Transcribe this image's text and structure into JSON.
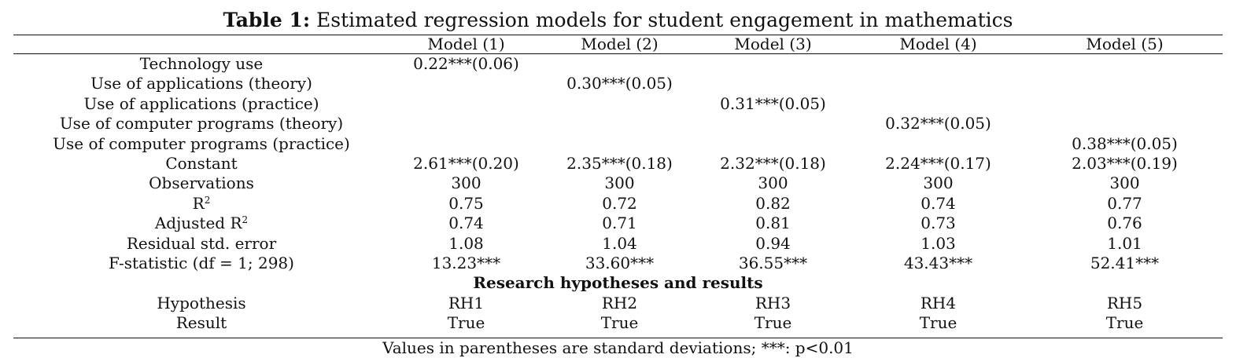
{
  "table": {
    "caption_bold": "Table 1:",
    "caption_rest": " Estimated regression models for student engagement in mathematics",
    "headers": [
      "",
      "Model (1)",
      "Model (2)",
      "Model (3)",
      "Model (4)",
      "Model (5)"
    ],
    "rows": [
      {
        "label": "Technology use",
        "cells": [
          "0.22***(0.06)",
          "",
          "",
          "",
          ""
        ]
      },
      {
        "label": "Use of applications (theory)",
        "cells": [
          "",
          "0.30***(0.05)",
          "",
          "",
          ""
        ]
      },
      {
        "label": "Use of applications (practice)",
        "cells": [
          "",
          "",
          "0.31***(0.05)",
          "",
          ""
        ]
      },
      {
        "label": "Use of computer programs (theory)",
        "cells": [
          "",
          "",
          "",
          "0.32***(0.05)",
          ""
        ]
      },
      {
        "label": "Use of computer programs (practice)",
        "cells": [
          "",
          "",
          "",
          "",
          "0.38***(0.05)"
        ]
      },
      {
        "label": "Constant",
        "cells": [
          "2.61***(0.20)",
          "2.35***(0.18)",
          "2.32***(0.18)",
          "2.24***(0.17)",
          "2.03***(0.19)"
        ]
      },
      {
        "label": "Observations",
        "cells": [
          "300",
          "300",
          "300",
          "300",
          "300"
        ]
      },
      {
        "label": "R",
        "sup": "2",
        "cells": [
          "0.75",
          "0.72",
          "0.82",
          "0.74",
          "0.77"
        ]
      },
      {
        "label": "Adjusted R",
        "sup": "2",
        "cells": [
          "0.74",
          "0.71",
          "0.81",
          "0.73",
          "0.76"
        ]
      },
      {
        "label": "Residual std. error",
        "cells": [
          "1.08",
          "1.04",
          "0.94",
          "1.03",
          "1.01"
        ]
      },
      {
        "label": "F-statistic (df = 1; 298)",
        "cells": [
          "13.23***",
          "33.60***",
          "36.55***",
          "43.43***",
          "52.41***"
        ]
      }
    ],
    "section_title": "Research hypotheses and results",
    "hypothesis_rows": [
      {
        "label": "Hypothesis",
        "cells": [
          "RH1",
          "RH2",
          "RH3",
          "RH4",
          "RH5"
        ]
      },
      {
        "label": "Result",
        "cells": [
          "True",
          "True",
          "True",
          "True",
          "True"
        ]
      }
    ],
    "note": "Values in parentheses are standard deviations; ***: p<0.01"
  }
}
